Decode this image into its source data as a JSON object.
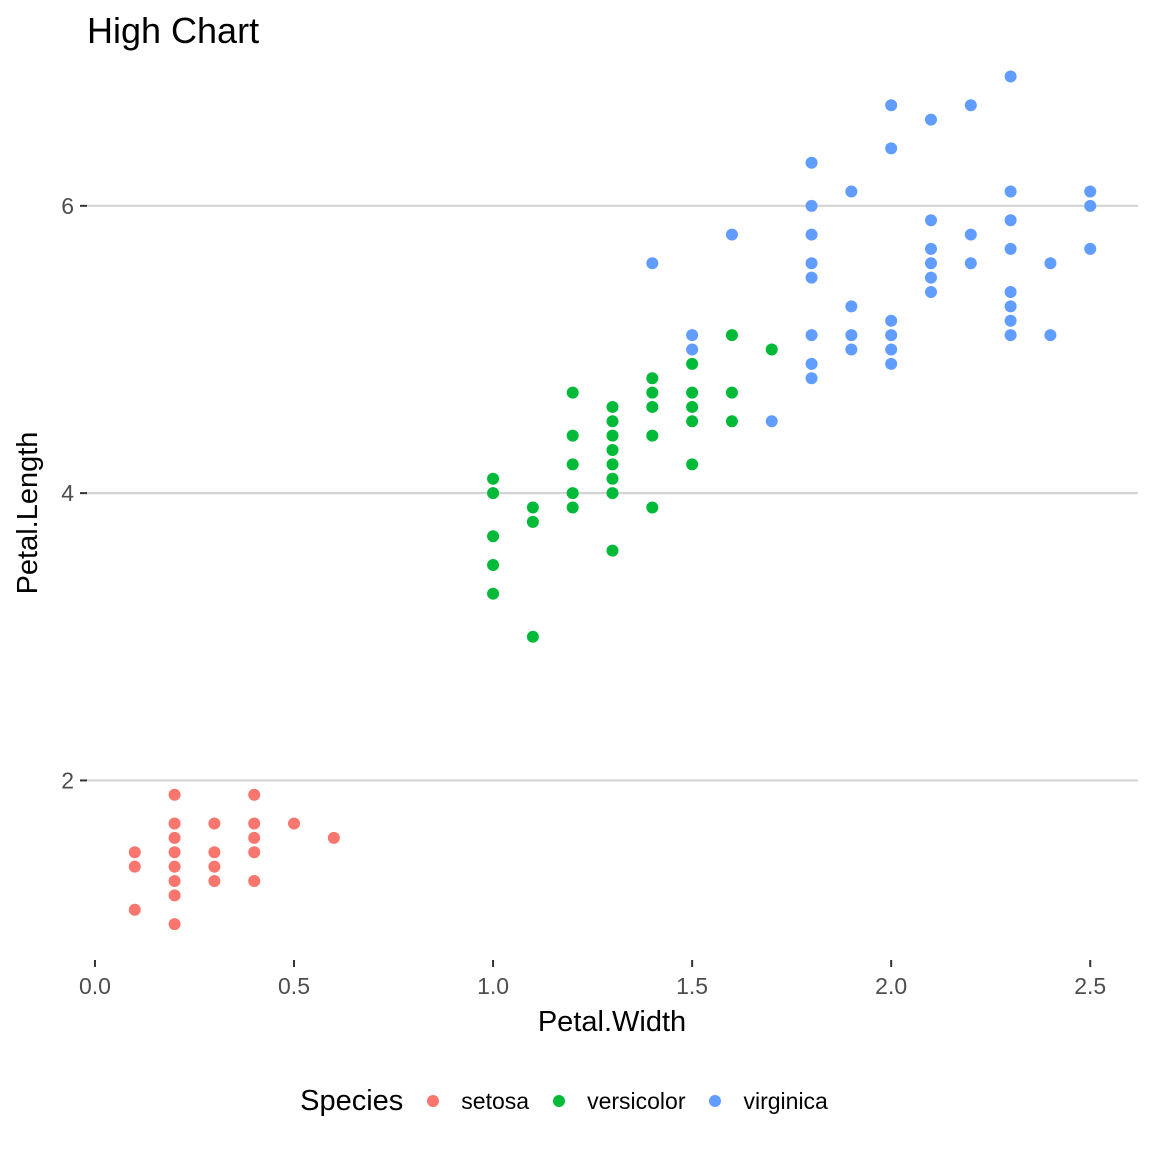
{
  "chart_data": {
    "type": "scatter",
    "title": "High Chart",
    "xlabel": "Petal.Width",
    "ylabel": "Petal.Length",
    "xlim": [
      -0.02,
      2.62
    ],
    "ylim": [
      0.75,
      7.05
    ],
    "x_ticks": [
      {
        "value": 0,
        "label": "0.0"
      },
      {
        "value": 0.5,
        "label": "0.5"
      },
      {
        "value": 1,
        "label": "1.0"
      },
      {
        "value": 1.5,
        "label": "1.5"
      },
      {
        "value": 2,
        "label": "2.0"
      },
      {
        "value": 2.5,
        "label": "2.5"
      }
    ],
    "y_ticks": [
      {
        "value": 2,
        "label": "2"
      },
      {
        "value": 4,
        "label": "4"
      },
      {
        "value": 6,
        "label": "6"
      }
    ],
    "grid": "horizontal-major",
    "legend": {
      "title": "Species",
      "placement": "bottom"
    },
    "series": [
      {
        "name": "setosa",
        "color": "#F8766D",
        "points": [
          [
            0.1,
            1.1
          ],
          [
            0.1,
            1.4
          ],
          [
            0.1,
            1.5
          ],
          [
            0.2,
            1.0
          ],
          [
            0.2,
            1.2
          ],
          [
            0.2,
            1.3
          ],
          [
            0.2,
            1.4
          ],
          [
            0.2,
            1.5
          ],
          [
            0.2,
            1.6
          ],
          [
            0.2,
            1.7
          ],
          [
            0.2,
            1.9
          ],
          [
            0.3,
            1.3
          ],
          [
            0.3,
            1.4
          ],
          [
            0.3,
            1.5
          ],
          [
            0.3,
            1.7
          ],
          [
            0.4,
            1.3
          ],
          [
            0.4,
            1.5
          ],
          [
            0.4,
            1.6
          ],
          [
            0.4,
            1.7
          ],
          [
            0.4,
            1.9
          ],
          [
            0.5,
            1.7
          ],
          [
            0.6,
            1.6
          ]
        ]
      },
      {
        "name": "versicolor",
        "color": "#00BA38",
        "points": [
          [
            1.0,
            3.3
          ],
          [
            1.0,
            3.5
          ],
          [
            1.0,
            3.7
          ],
          [
            1.0,
            4.0
          ],
          [
            1.0,
            4.1
          ],
          [
            1.1,
            3.0
          ],
          [
            1.1,
            3.8
          ],
          [
            1.1,
            3.9
          ],
          [
            1.2,
            3.9
          ],
          [
            1.2,
            4.0
          ],
          [
            1.2,
            4.2
          ],
          [
            1.2,
            4.4
          ],
          [
            1.2,
            4.7
          ],
          [
            1.3,
            3.6
          ],
          [
            1.3,
            4.0
          ],
          [
            1.3,
            4.1
          ],
          [
            1.3,
            4.2
          ],
          [
            1.3,
            4.3
          ],
          [
            1.3,
            4.4
          ],
          [
            1.3,
            4.5
          ],
          [
            1.3,
            4.6
          ],
          [
            1.4,
            3.9
          ],
          [
            1.4,
            4.4
          ],
          [
            1.4,
            4.6
          ],
          [
            1.4,
            4.7
          ],
          [
            1.4,
            4.8
          ],
          [
            1.5,
            4.2
          ],
          [
            1.5,
            4.5
          ],
          [
            1.5,
            4.6
          ],
          [
            1.5,
            4.7
          ],
          [
            1.5,
            4.9
          ],
          [
            1.6,
            4.5
          ],
          [
            1.6,
            4.7
          ],
          [
            1.6,
            5.1
          ],
          [
            1.7,
            5.0
          ]
        ]
      },
      {
        "name": "virginica",
        "color": "#619CFF",
        "points": [
          [
            1.4,
            5.6
          ],
          [
            1.5,
            5.0
          ],
          [
            1.5,
            5.1
          ],
          [
            1.6,
            5.8
          ],
          [
            1.7,
            4.5
          ],
          [
            1.8,
            4.8
          ],
          [
            1.8,
            4.9
          ],
          [
            1.8,
            5.1
          ],
          [
            1.8,
            5.5
          ],
          [
            1.8,
            5.6
          ],
          [
            1.8,
            5.8
          ],
          [
            1.8,
            6.0
          ],
          [
            1.8,
            6.3
          ],
          [
            1.9,
            5.0
          ],
          [
            1.9,
            5.1
          ],
          [
            1.9,
            5.3
          ],
          [
            1.9,
            6.1
          ],
          [
            2.0,
            4.9
          ],
          [
            2.0,
            5.0
          ],
          [
            2.0,
            5.1
          ],
          [
            2.0,
            5.2
          ],
          [
            2.0,
            6.4
          ],
          [
            2.0,
            6.7
          ],
          [
            2.1,
            5.4
          ],
          [
            2.1,
            5.5
          ],
          [
            2.1,
            5.6
          ],
          [
            2.1,
            5.7
          ],
          [
            2.1,
            5.9
          ],
          [
            2.1,
            6.6
          ],
          [
            2.2,
            5.6
          ],
          [
            2.2,
            5.8
          ],
          [
            2.2,
            6.7
          ],
          [
            2.3,
            5.1
          ],
          [
            2.3,
            5.2
          ],
          [
            2.3,
            5.3
          ],
          [
            2.3,
            5.4
          ],
          [
            2.3,
            5.7
          ],
          [
            2.3,
            5.9
          ],
          [
            2.3,
            6.1
          ],
          [
            2.3,
            6.9
          ],
          [
            2.4,
            5.1
          ],
          [
            2.4,
            5.6
          ],
          [
            2.5,
            5.7
          ],
          [
            2.5,
            6.0
          ],
          [
            2.5,
            6.1
          ]
        ]
      }
    ]
  }
}
